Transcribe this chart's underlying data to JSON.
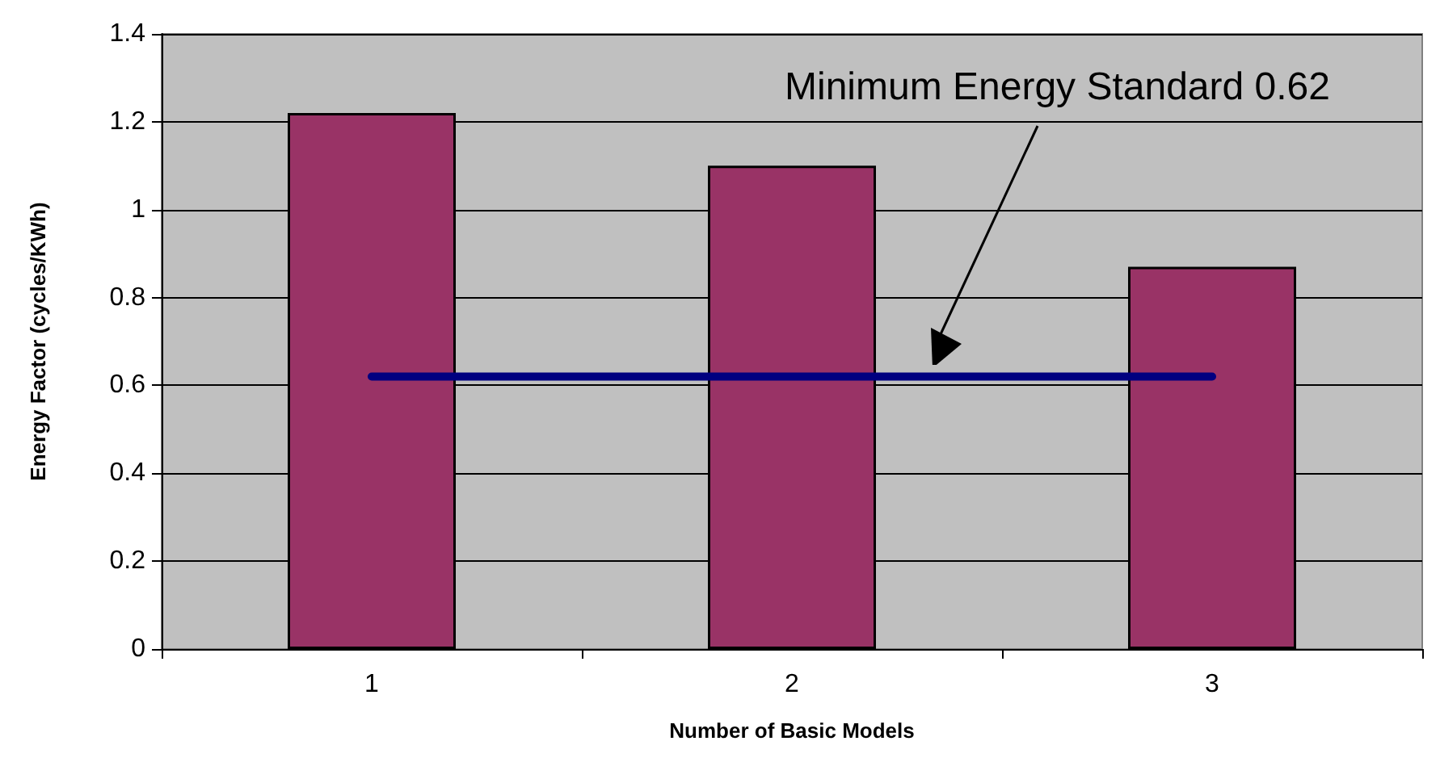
{
  "chart_data": {
    "type": "bar",
    "xlabel": "Number of Basic Models",
    "ylabel": "Energy Factor (cycles/KWh)",
    "categories": [
      "1",
      "2",
      "3"
    ],
    "series": [
      {
        "color": "#993366",
        "values": [
          1.22,
          1.1,
          0.87
        ]
      },
      {
        "type": "line",
        "color": "#000080",
        "values": [
          0.62,
          0.62,
          0.62
        ],
        "marker": "none",
        "line_style": "solid"
      }
    ],
    "annotations": [
      "Minimum Energy Standard 0.62"
    ],
    "ylim": [
      0,
      1.4
    ],
    "yticks": [
      0,
      0.2,
      0.4,
      0.6,
      0.8,
      1,
      1.2,
      1.4
    ],
    "grid": "y"
  }
}
